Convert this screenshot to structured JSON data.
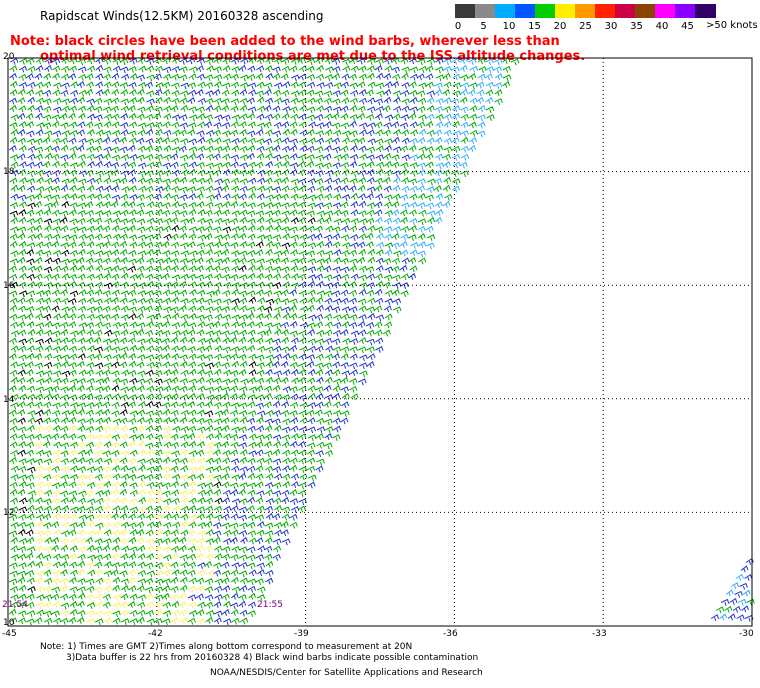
{
  "header": {
    "title": "Rapidscat Winds(12.5KM) 20160328 ascending"
  },
  "colorbar": {
    "units_label": ">50 knots",
    "ticks": [
      "0",
      "5",
      "10",
      "15",
      "20",
      "25",
      "30",
      "35",
      "40",
      "45"
    ],
    "colors": [
      "#3a3a3a",
      "#8a8a8a",
      "#00aaff",
      "#0055ff",
      "#00cc00",
      "#ffee00",
      "#ff9900",
      "#ff2200",
      "#cc0044",
      "#884400",
      "#ff00ff",
      "#8800ff",
      "#330066"
    ]
  },
  "warning": {
    "line1": "Note: black circles have been added to the wind barbs, wherever less than",
    "line2": "optimal wind retrieval conditions are met due to the ISS altitude changes."
  },
  "axes": {
    "x_ticks": [
      "-45",
      "-42",
      "-39",
      "-36",
      "-33",
      "-30"
    ],
    "y_ticks": [
      "20",
      "18",
      "16",
      "14",
      "12",
      "10"
    ]
  },
  "times": {
    "left": "21:54",
    "center": "21:55"
  },
  "footer": {
    "note1": "Note: 1) Times are GMT 2)Times along bottom correspond to measurement at 20N",
    "note2": "3)Data buffer is 22 hrs from 20160328 4) Black wind barbs indicate possible contamination",
    "credit": "NOAA/NESDIS/Center for Satellite Applications and Research"
  },
  "map_data": {
    "lon_range": [
      -45,
      -30
    ],
    "lat_range": [
      10,
      20
    ],
    "grid": "dotted",
    "swaths": [
      {
        "name": "main",
        "edge": [
          [
            -40.2,
            10
          ],
          [
            -34.7,
            20
          ]
        ]
      },
      {
        "name": "corner",
        "edge": [
          [
            -31.0,
            10
          ],
          [
            -30,
            11.4
          ]
        ]
      }
    ],
    "barb_colors": {
      "calm": "#ffee66",
      "light": "#00aa00",
      "moderate": "#2233cc",
      "fresh": "#33aaff",
      "contaminated": "#000000"
    }
  }
}
